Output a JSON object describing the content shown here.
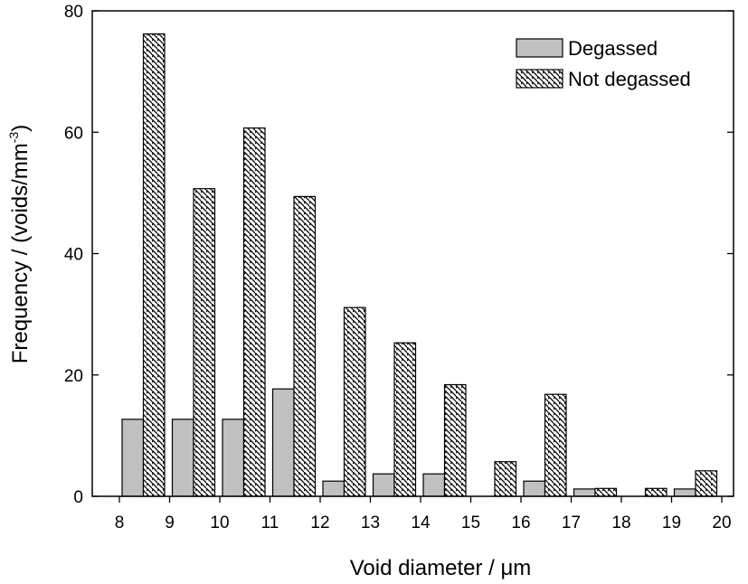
{
  "chart_data": {
    "type": "bar",
    "xlabel": "Void diameter / μm",
    "ylabel_main": "Frequency / (voids/mm",
    "ylabel_sup": "-3",
    "ylabel_end": ")",
    "x_ticks": [
      "8",
      "9",
      "10",
      "11",
      "12",
      "13",
      "14",
      "15",
      "16",
      "17",
      "18",
      "19",
      "20"
    ],
    "xlim": [
      8,
      20
    ],
    "y_ticks": [
      "0",
      "20",
      "40",
      "60",
      "80"
    ],
    "ylim": [
      0,
      80
    ],
    "legend_position": "top-right",
    "grid": false,
    "bin_starts": [
      8,
      9,
      10,
      11,
      12,
      13,
      14,
      15,
      16,
      17,
      18,
      19
    ],
    "series": [
      {
        "name": "Degassed",
        "style": "solid",
        "color": "#c0c0c0",
        "values": [
          12.7,
          12.7,
          12.7,
          17.7,
          2.5,
          3.7,
          3.7,
          0,
          2.5,
          1.2,
          0,
          1.2
        ]
      },
      {
        "name": "Not degassed",
        "style": "hatched",
        "color": "#ffffff",
        "values": [
          76.2,
          50.7,
          60.7,
          49.4,
          31.1,
          25.3,
          18.4,
          5.7,
          16.8,
          1.3,
          1.3,
          4.2
        ]
      }
    ]
  }
}
